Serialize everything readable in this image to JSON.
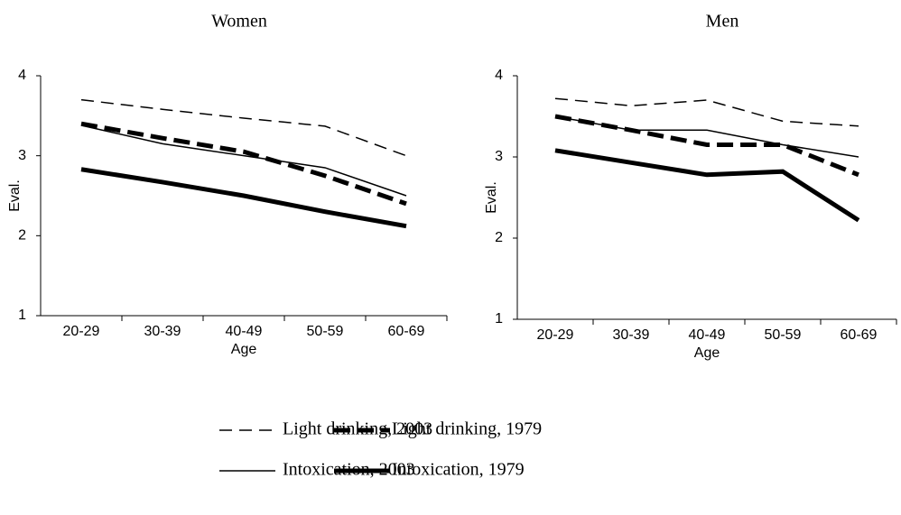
{
  "chart_data": [
    {
      "type": "line",
      "title": "Women",
      "x_label": "Age",
      "y_label": "Eval.",
      "categories": [
        "20-29",
        "30-39",
        "40-49",
        "50-59",
        "60-69"
      ],
      "ylim": [
        1,
        4
      ],
      "yticks": [
        1,
        2,
        3,
        4
      ],
      "series": [
        {
          "name": "Light drinking, 2003",
          "color": "#000000",
          "line_style": "dashed",
          "line_width": 1.5,
          "values": [
            3.7,
            3.58,
            3.47,
            3.37,
            3.0
          ]
        },
        {
          "name": "Light drinking, 1979",
          "color": "#000000",
          "line_style": "dashed",
          "line_width": 5,
          "values": [
            3.4,
            3.22,
            3.05,
            2.75,
            2.4
          ]
        },
        {
          "name": "Intoxication, 2003",
          "color": "#000000",
          "line_style": "solid",
          "line_width": 1.5,
          "values": [
            3.38,
            3.15,
            3.0,
            2.85,
            2.5
          ]
        },
        {
          "name": "Intoxication, 1979",
          "color": "#000000",
          "line_style": "solid",
          "line_width": 5,
          "values": [
            2.83,
            2.67,
            2.5,
            2.3,
            2.12
          ]
        }
      ]
    },
    {
      "type": "line",
      "title": "Men",
      "x_label": "Age",
      "y_label": "Eval.",
      "categories": [
        "20-29",
        "30-39",
        "40-49",
        "50-59",
        "60-69"
      ],
      "ylim": [
        1,
        4
      ],
      "yticks": [
        1,
        2,
        3,
        4
      ],
      "series": [
        {
          "name": "Light drinking, 2003",
          "color": "#000000",
          "line_style": "dashed",
          "line_width": 1.5,
          "values": [
            3.72,
            3.63,
            3.7,
            3.44,
            3.38
          ]
        },
        {
          "name": "Light drinking, 1979",
          "color": "#000000",
          "line_style": "dashed",
          "line_width": 5,
          "values": [
            3.5,
            3.33,
            3.15,
            3.15,
            2.78
          ]
        },
        {
          "name": "Intoxication, 2003",
          "color": "#000000",
          "line_style": "solid",
          "line_width": 1.5,
          "values": [
            3.5,
            3.33,
            3.33,
            3.15,
            3.0
          ]
        },
        {
          "name": "Intoxication, 1979",
          "color": "#000000",
          "line_style": "solid",
          "line_width": 5,
          "values": [
            3.08,
            2.93,
            2.78,
            2.82,
            2.22
          ]
        }
      ]
    }
  ]
}
